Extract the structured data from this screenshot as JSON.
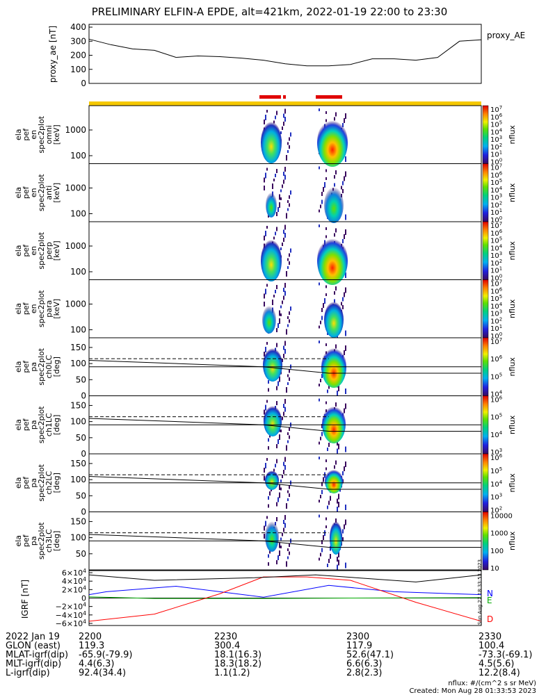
{
  "title": "PRELIMINARY ELFIN-A EPDE, alt=421km, 2022-01-19 22:00 to 23:30",
  "colors": {
    "sun_bar": "#f5c800",
    "science_bar": "#e00000",
    "bfield_N": "#0000ff",
    "bfield_E": "#00aa00",
    "bfield_D": "#ff0000",
    "bfield_total": "#000000"
  },
  "panels": [
    {
      "labels": [
        "ela",
        "pef",
        "en",
        "spec2plot",
        "omni",
        "[keV]"
      ],
      "yticks": [
        "1000",
        "100"
      ],
      "cbar_ticks": [
        "10^7",
        "10^6",
        "10^5",
        "10^4",
        "10^3",
        "10^2",
        "10^1",
        "10^0"
      ],
      "cbar_label": "nflux"
    },
    {
      "labels": [
        "ela",
        "pef",
        "en",
        "spec2plot",
        "anti",
        "[keV]"
      ],
      "yticks": [
        "1000",
        "100"
      ],
      "cbar_ticks": [
        "10^7",
        "10^6",
        "10^5",
        "10^4",
        "10^3",
        "10^2",
        "10^1",
        "10^0"
      ],
      "cbar_label": "nflux"
    },
    {
      "labels": [
        "ela",
        "pef",
        "en",
        "spec2plot",
        "perp",
        "[keV]"
      ],
      "yticks": [
        "1000",
        "100"
      ],
      "cbar_ticks": [
        "10^7",
        "10^6",
        "10^5",
        "10^4",
        "10^3",
        "10^2",
        "10^1",
        "10^0"
      ],
      "cbar_label": "nflux"
    },
    {
      "labels": [
        "ela",
        "pef",
        "en",
        "spec2plot",
        "para",
        "[keV]"
      ],
      "yticks": [
        "1000",
        "100"
      ],
      "cbar_ticks": [
        "10^7",
        "10^6",
        "10^5",
        "10^4",
        "10^3",
        "10^2",
        "10^1",
        "10^0"
      ],
      "cbar_label": "nflux"
    },
    {
      "labels": [
        "ela",
        "pef",
        "pa",
        "spec2plot",
        "ch0LC",
        "[deg]"
      ],
      "yticks": [
        "150",
        "100",
        "50",
        "0"
      ],
      "cbar_ticks": [
        "10^7",
        "10^6",
        "10^5",
        "10^4"
      ],
      "cbar_label": "nflux"
    },
    {
      "labels": [
        "ela",
        "pef",
        "pa",
        "spec2plot",
        "ch1LC",
        "[deg]"
      ],
      "yticks": [
        "150",
        "100",
        "50",
        "0"
      ],
      "cbar_ticks": [
        "10^6",
        "10^5",
        "10^4",
        "10^3"
      ],
      "cbar_label": "nflux"
    },
    {
      "labels": [
        "ela",
        "pef",
        "pa",
        "spec2plot",
        "ch2LC",
        "[deg]"
      ],
      "yticks": [
        "150",
        "100",
        "50",
        "0"
      ],
      "cbar_ticks": [
        "10^6",
        "10^5",
        "10^4",
        "10^3",
        "10^2"
      ],
      "cbar_label": "nflux"
    },
    {
      "labels": [
        "ela",
        "pef",
        "pa",
        "spec2plot",
        "ch3LC",
        "[deg]"
      ],
      "yticks": [
        "150",
        "100",
        "50"
      ],
      "cbar_ticks": [
        "10000",
        "1000",
        "100",
        "10"
      ],
      "cbar_label": "nflux"
    }
  ],
  "chart_data": {
    "type": "spectrogram",
    "proxy_ae": {
      "ylabel": "proxy_ae [nT]",
      "legend": "proxy_AE",
      "yticks": [
        "400",
        "300",
        "200",
        "100",
        "0"
      ],
      "ylim": [
        0,
        420
      ],
      "time_min": [
        0,
        5,
        10,
        15,
        20,
        25,
        30,
        35,
        40,
        45,
        50,
        55,
        60,
        65,
        70,
        75,
        80,
        85,
        90
      ],
      "values": [
        315,
        275,
        245,
        235,
        185,
        195,
        190,
        180,
        165,
        140,
        125,
        125,
        135,
        175,
        175,
        165,
        185,
        300,
        310
      ]
    },
    "bfield": {
      "ylabel": "IGRF [nT]",
      "yticks": [
        "6×10^4",
        "4×10^4",
        "2×10^4",
        "0",
        "−2×10^4",
        "−4×10^4",
        "−6×10^4"
      ],
      "ylim": [
        -65000,
        65000
      ],
      "series": [
        {
          "name": "N",
          "time_min": [
            0,
            4,
            20,
            40,
            55,
            70,
            90
          ],
          "values": [
            8000,
            15000,
            28000,
            2000,
            30000,
            15000,
            8000
          ]
        },
        {
          "name": "E",
          "time_min": [
            0,
            15,
            40,
            60,
            90
          ],
          "values": [
            3000,
            -1000,
            -1000,
            0,
            1000
          ]
        },
        {
          "name": "D",
          "time_min": [
            0,
            15,
            30,
            40,
            50,
            60,
            75,
            90
          ],
          "values": [
            -55000,
            -38000,
            10000,
            50000,
            50000,
            42000,
            -10000,
            -55000
          ]
        },
        {
          "name": "",
          "time_min": [
            0,
            15,
            38,
            52,
            75,
            90
          ],
          "values": [
            55000,
            42000,
            48000,
            55000,
            38000,
            55000
          ]
        }
      ]
    }
  },
  "footer": {
    "rows": [
      [
        "2022 Jan 19",
        "2200",
        "2230",
        "2300",
        "2330"
      ],
      [
        "GLON (east)",
        "119.3",
        "300.4",
        "117.9",
        "100.4"
      ],
      [
        "MLAT-igrf(dip)",
        "-65.9(-79.9)",
        "18.1(16.3)",
        "52.6(47.1)",
        "-73.3(-69.1)"
      ],
      [
        "MLT-igrf(dip)",
        "4.4(6.3)",
        "18.3(18.2)",
        "6.6(6.3)",
        "4.5(5.6)"
      ],
      [
        "L-igrf(dip)",
        "92.4(34.4)",
        "1.1(1.2)",
        "2.8(2.3)",
        "12.2(8.4)"
      ]
    ],
    "nflux_units": "nflux: #/(cm^2 s sr MeV)",
    "created": "Created: Mon Aug 28 01:33:53 2023",
    "timestamp": "Sun Aug 27 18:33:53 2023"
  }
}
